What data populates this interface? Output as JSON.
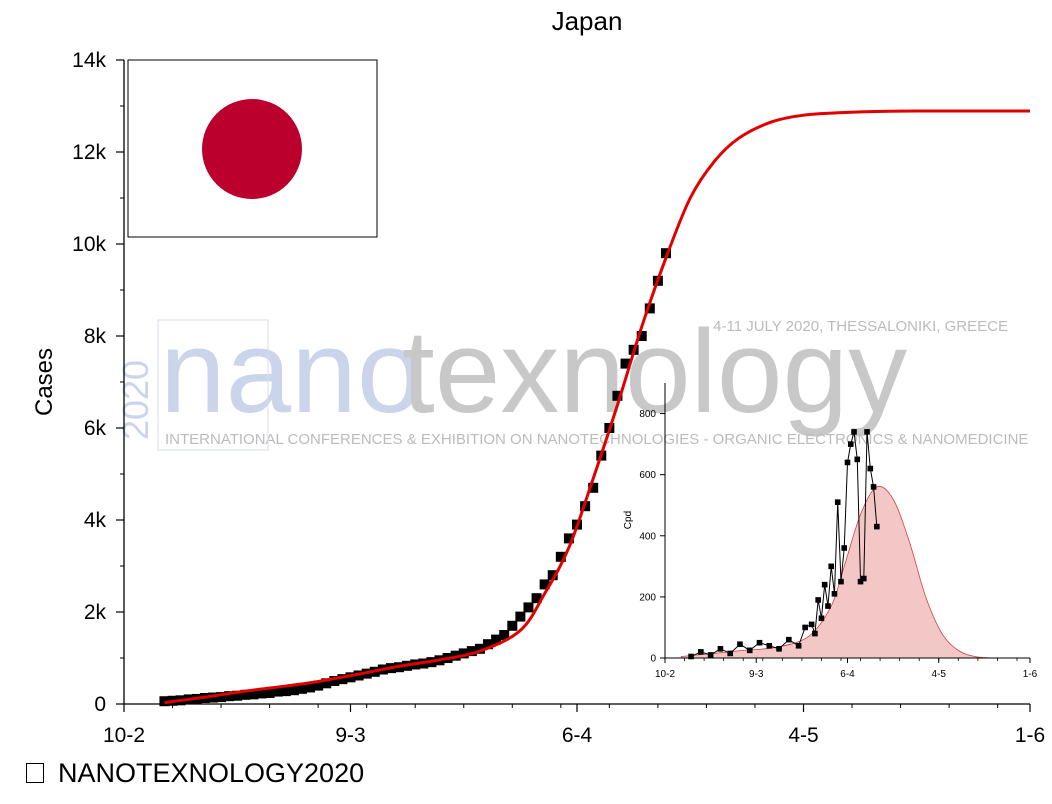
{
  "chart_data": [
    {
      "type": "scatter",
      "title": "Japan",
      "xlabel": "",
      "ylabel": "Cases",
      "x_tick_labels": [
        "10-2",
        "9-3",
        "6-4",
        "4-5",
        "1-6"
      ],
      "y_tick_labels": [
        "0",
        "2k",
        "4k",
        "6k",
        "8k",
        "10k",
        "12k",
        "14k"
      ],
      "xlim": [
        "10-2",
        "1-6"
      ],
      "ylim": [
        0,
        14000
      ],
      "grid": false,
      "legend": "none",
      "series": [
        {
          "kind": "points",
          "marker": "square",
          "color": "#000000",
          "x": [
            "15-2",
            "16-2",
            "17-2",
            "18-2",
            "19-2",
            "20-2",
            "21-2",
            "22-2",
            "23-2",
            "24-2",
            "25-2",
            "26-2",
            "27-2",
            "28-2",
            "29-2",
            "1-3",
            "2-3",
            "3-3",
            "4-3",
            "5-3",
            "6-3",
            "7-3",
            "8-3",
            "9-3",
            "10-3",
            "11-3",
            "12-3",
            "13-3",
            "14-3",
            "15-3",
            "16-3",
            "17-3",
            "18-3",
            "19-3",
            "20-3",
            "21-3",
            "22-3",
            "23-3",
            "24-3",
            "25-3",
            "26-3",
            "27-3",
            "28-3",
            "29-3",
            "30-3",
            "31-3",
            "1-4",
            "2-4",
            "3-4",
            "4-4",
            "5-4",
            "6-4",
            "7-4",
            "8-4",
            "9-4",
            "10-4",
            "11-4",
            "12-4",
            "13-4",
            "14-4",
            "15-4",
            "16-4",
            "17-4",
            "18-4"
          ],
          "y": [
            60,
            70,
            80,
            100,
            110,
            130,
            140,
            150,
            170,
            180,
            200,
            210,
            230,
            240,
            270,
            280,
            300,
            330,
            360,
            400,
            450,
            500,
            540,
            580,
            620,
            660,
            700,
            750,
            780,
            800,
            830,
            860,
            880,
            910,
            950,
            1000,
            1050,
            1100,
            1150,
            1200,
            1300,
            1400,
            1500,
            1700,
            1900,
            2100,
            2300,
            2600,
            2800,
            3200,
            3600,
            3900,
            4300,
            4700,
            5400,
            6000,
            6700,
            7400,
            7700,
            8000,
            8600,
            9200,
            9800,
            null
          ]
        },
        {
          "kind": "fit",
          "color": "#e00000",
          "x": [
            "15-2",
            "20-2",
            "25-2",
            "1-3",
            "5-3",
            "10-3",
            "15-3",
            "20-3",
            "25-3",
            "30-3",
            "2-4",
            "5-4",
            "8-4",
            "11-4",
            "14-4",
            "17-4",
            "20-4",
            "23-4",
            "26-4",
            "30-4",
            "4-5",
            "8-5",
            "13-5",
            "18-5",
            "23-5",
            "1-6"
          ],
          "y": [
            30,
            150,
            280,
            390,
            490,
            650,
            820,
            960,
            1150,
            1600,
            2400,
            3400,
            4900,
            6500,
            8200,
            9700,
            11000,
            11800,
            12300,
            12650,
            12800,
            12850,
            12880,
            12890,
            12890,
            12890
          ]
        }
      ]
    },
    {
      "type": "area",
      "title": "",
      "xlabel": "",
      "ylabel": "Cpd",
      "x_tick_labels": [
        "10-2",
        "9-3",
        "6-4",
        "4-5",
        "1-6"
      ],
      "y_tick_labels": [
        "0",
        "200",
        "400",
        "600",
        "800"
      ],
      "xlim": [
        "10-2",
        "1-6"
      ],
      "ylim": [
        0,
        900
      ],
      "grid": false,
      "legend": "none",
      "series": [
        {
          "kind": "points",
          "marker": "square",
          "color": "#000000",
          "x": [
            "18-2",
            "21-2",
            "24-2",
            "27-2",
            "1-3",
            "4-3",
            "7-3",
            "10-3",
            "13-3",
            "16-3",
            "19-3",
            "22-3",
            "24-3",
            "26-3",
            "27-3",
            "28-3",
            "29-3",
            "30-3",
            "31-3",
            "1-4",
            "2-4",
            "3-4",
            "4-4",
            "5-4",
            "6-4",
            "7-4",
            "8-4",
            "9-4",
            "10-4",
            "11-4",
            "12-4",
            "13-4",
            "14-4",
            "15-4",
            "16-4",
            "17-4",
            "18-4"
          ],
          "y": [
            5,
            20,
            10,
            30,
            15,
            45,
            25,
            50,
            40,
            30,
            60,
            40,
            100,
            110,
            80,
            190,
            130,
            240,
            170,
            300,
            210,
            510,
            250,
            360,
            640,
            700,
            740,
            650,
            250,
            260,
            740,
            620,
            560,
            430,
            null,
            null,
            null
          ]
        },
        {
          "kind": "fit",
          "color": "#f4c7c7",
          "x": [
            "15-2",
            "25-2",
            "5-3",
            "15-3",
            "25-3",
            "1-4",
            "5-4",
            "10-4",
            "15-4",
            "20-4",
            "25-4",
            "30-4",
            "5-5",
            "10-5",
            "15-5",
            "20-5"
          ],
          "y": [
            5,
            15,
            25,
            35,
            70,
            170,
            300,
            470,
            560,
            520,
            380,
            200,
            80,
            25,
            5,
            0
          ]
        }
      ]
    }
  ],
  "brand": {
    "prefix": "2020",
    "name_part1": "nano",
    "name_part2": "texnology",
    "event_dates": "4-11 JULY 2020, THESSALONIKI, GREECE",
    "tagline": "INTERNATIONAL CONFERENCES & EXHIBITION ON NANOTECHNOLOGIES - ORGANIC ELECTRONICS & NANOMEDICINE"
  },
  "footer": {
    "text": "NANOTEXNOLOGY2020"
  },
  "colors": {
    "fit": "#e00000",
    "flag_disc": "#bc002d",
    "inset_fill": "#f4c7c7"
  }
}
